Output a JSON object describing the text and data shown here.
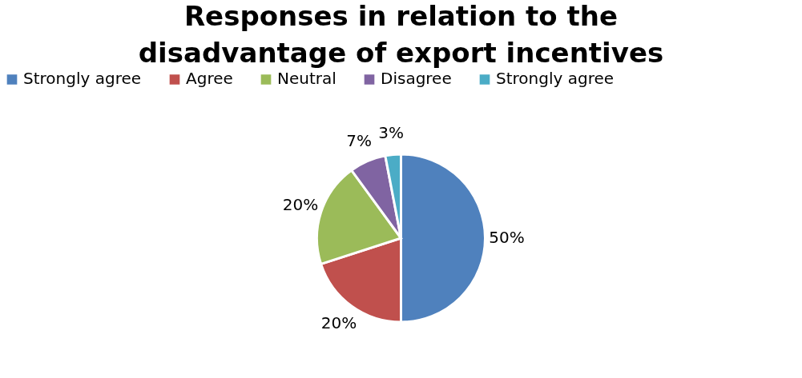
{
  "chart_data": {
    "type": "pie",
    "title": "Responses in relation to the disadvantage of export incentives",
    "categories": [
      "Strongly agree",
      "Agree",
      "Neutral",
      "Disagree",
      "Strongly agree"
    ],
    "values": [
      50,
      20,
      20,
      7,
      3
    ],
    "colors": [
      "#4f81bd",
      "#c0504d",
      "#9bbb59",
      "#8064a2",
      "#4bacc6"
    ],
    "value_labels": [
      "50%",
      "20%",
      "20%",
      "7%",
      "3%"
    ],
    "legend": "top"
  }
}
